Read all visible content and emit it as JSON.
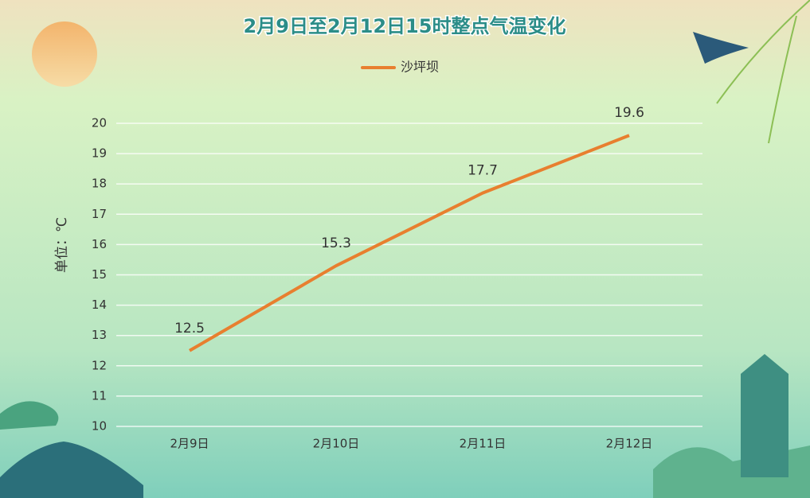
{
  "chart_data": {
    "type": "line",
    "title": "2月9日至2月12日15时整点气温变化",
    "y_label": "单位：℃",
    "categories": [
      "2月9日",
      "2月10日",
      "2月11日",
      "2月12日"
    ],
    "series": [
      {
        "name": "沙坪坝",
        "color": "#e87f2f",
        "values": [
          12.5,
          15.3,
          17.7,
          19.6
        ]
      }
    ],
    "ylim": [
      10,
      20
    ],
    "yticks": [
      10,
      11,
      12,
      13,
      14,
      15,
      16,
      17,
      18,
      19,
      20
    ],
    "grid": true,
    "data_labels": true,
    "legend": "top"
  }
}
